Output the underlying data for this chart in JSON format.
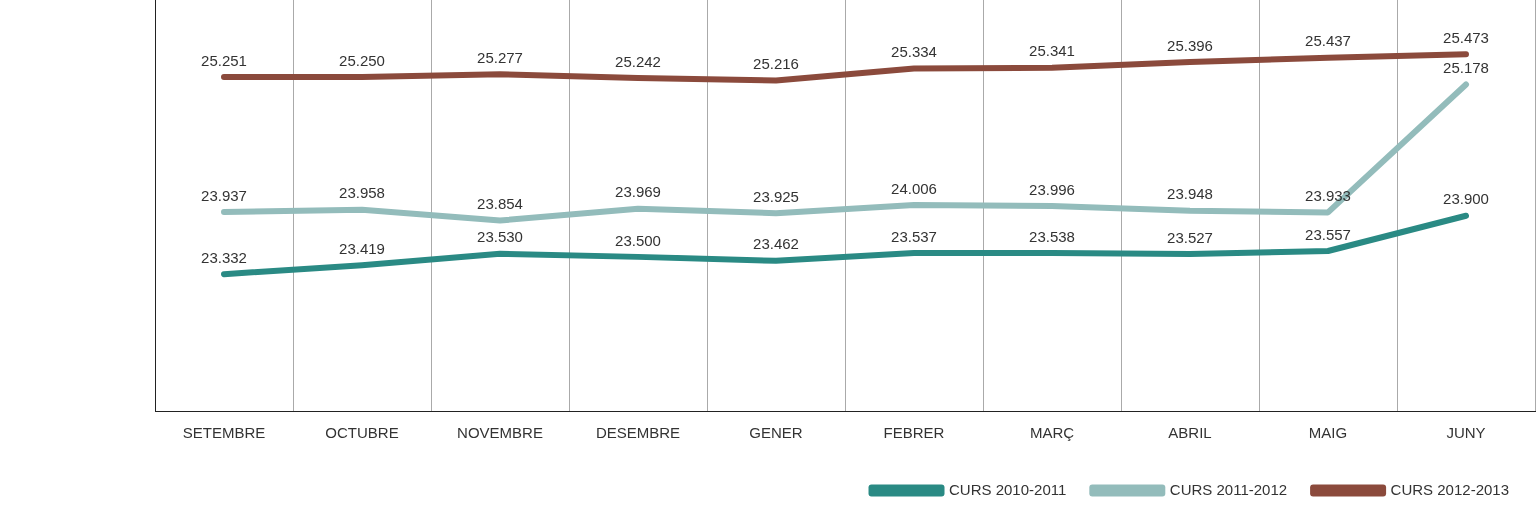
{
  "chart_data": {
    "type": "line",
    "categories": [
      "SETEMBRE",
      "OCTUBRE",
      "NOVEMBRE",
      "DESEMBRE",
      "GENER",
      "FEBRER",
      "MARÇ",
      "ABRIL",
      "MAIG",
      "JUNY"
    ],
    "ylim": [
      22000,
      26000
    ],
    "tick_labels": "x",
    "grid": "x",
    "legend": "bottom right",
    "marker": "none",
    "line_style": "solid",
    "series": [
      {
        "name": "CURS 2010-2011",
        "color": "#2a8a84",
        "values": [
          23332,
          23419,
          23530,
          23500,
          23462,
          23537,
          23538,
          23527,
          23557,
          23900
        ],
        "value_labels": [
          "23.332",
          "23.419",
          "23.530",
          "23.500",
          "23.462",
          "23.537",
          "23.538",
          "23.527",
          "23.557",
          "23.900"
        ]
      },
      {
        "name": "CURS 2011-2012",
        "color": "#93bcbb",
        "values": [
          23937,
          23958,
          23854,
          23969,
          23925,
          24006,
          23996,
          23948,
          23933,
          25178
        ],
        "value_labels": [
          "23.937",
          "23.958",
          "23.854",
          "23.969",
          "23.925",
          "24.006",
          "23.996",
          "23.948",
          "23.933",
          "25.178"
        ]
      },
      {
        "name": "CURS 2012-2013",
        "color": "#8b4a3c",
        "values": [
          25251,
          25250,
          25277,
          25242,
          25216,
          25334,
          25341,
          25396,
          25437,
          25473
        ],
        "value_labels": [
          "25.251",
          "25.250",
          "25.277",
          "25.242",
          "25.216",
          "25.334",
          "25.341",
          "25.396",
          "25.437",
          "25.473"
        ]
      }
    ]
  }
}
